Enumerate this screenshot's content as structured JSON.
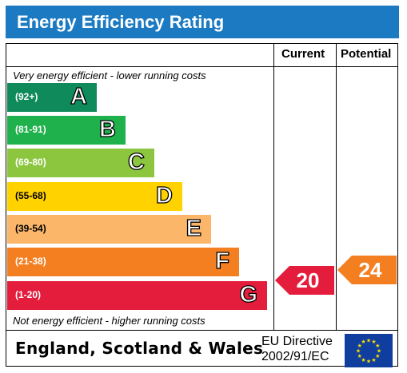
{
  "header": {
    "title": "Energy Efficiency Rating"
  },
  "columns": {
    "current": "Current",
    "potential": "Potential"
  },
  "notes": {
    "top": "Very energy efficient - lower running costs",
    "bottom": "Not energy efficient - higher running costs"
  },
  "bands": [
    {
      "range": "(92+)",
      "letter": "A",
      "color": "#0f8a5a"
    },
    {
      "range": "(81-91)",
      "letter": "B",
      "color": "#1fb14b"
    },
    {
      "range": "(69-80)",
      "letter": "C",
      "color": "#8cc63f"
    },
    {
      "range": "(55-68)",
      "letter": "D",
      "color": "#ffd200"
    },
    {
      "range": "(39-54)",
      "letter": "E",
      "color": "#fbb66a"
    },
    {
      "range": "(21-38)",
      "letter": "F",
      "color": "#f47f21"
    },
    {
      "range": "(1-20)",
      "letter": "G",
      "color": "#e41d3c"
    }
  ],
  "ratings": {
    "current": {
      "value": "20",
      "band": "G",
      "color": "#e41d3c"
    },
    "potential": {
      "value": "24",
      "band": "F",
      "color": "#f47f21"
    }
  },
  "footer": {
    "region": "England, Scotland & Wales",
    "directive_line1": "EU Directive",
    "directive_line2": "2002/91/EC",
    "flag_icon": "eu-flag-icon"
  }
}
